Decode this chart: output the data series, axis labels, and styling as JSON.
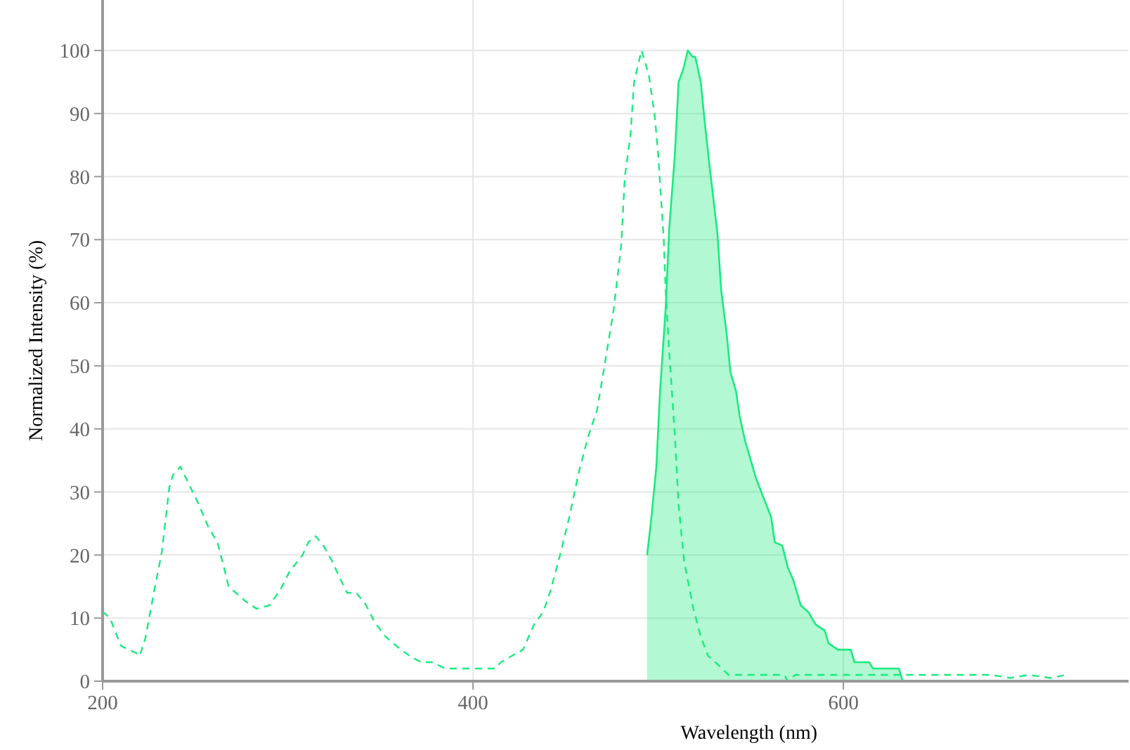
{
  "chart_data": {
    "type": "line",
    "xlabel": "Wavelength (nm)",
    "ylabel": "Normalized Intensity (%)",
    "xlim": [
      200,
      754
    ],
    "ylim": [
      0,
      108
    ],
    "xticks": [
      200,
      400,
      600
    ],
    "yticks": [
      0,
      10,
      20,
      30,
      40,
      50,
      60,
      70,
      80,
      90,
      100
    ],
    "grid": true,
    "series": [
      {
        "line_style": "dashed",
        "color": "#1aeb7d",
        "x": [
          200,
          204,
          208,
          210,
          214,
          218,
          220,
          223,
          228,
          232,
          236,
          238,
          242,
          247,
          252,
          257,
          262,
          266,
          268,
          272,
          277,
          283,
          290,
          296,
          301,
          308,
          311,
          315,
          319,
          324,
          328,
          332,
          337,
          342,
          347,
          353,
          361,
          367,
          372,
          378,
          385,
          412,
          415,
          421,
          427,
          433,
          438,
          442,
          447,
          452,
          457,
          462,
          467,
          471,
          476,
          480,
          482,
          485,
          487,
          491,
          495,
          498,
          500,
          503,
          504,
          506,
          509,
          511,
          514,
          519,
          523,
          527,
          532,
          538,
          568,
          570,
          574,
          680,
          690,
          700,
          712,
          720
        ],
        "values": [
          11,
          10,
          7,
          5.6,
          5,
          4.5,
          4,
          6.7,
          14.5,
          20.5,
          30.7,
          32.7,
          34,
          31,
          28,
          24.5,
          22,
          17.5,
          15,
          14,
          12.7,
          11.5,
          12,
          14.5,
          17.4,
          20,
          22,
          23,
          21.6,
          19,
          16.4,
          14,
          14,
          12.2,
          9.3,
          7,
          5,
          3.8,
          3,
          3,
          2,
          2,
          3,
          4,
          5,
          9,
          11,
          14.5,
          20,
          26,
          33,
          38.6,
          43,
          50,
          59,
          69,
          80,
          86.5,
          95,
          100,
          96,
          90,
          83.5,
          70,
          62,
          52,
          39,
          28,
          19,
          11.5,
          7,
          4,
          2.7,
          1,
          1,
          0,
          1,
          1,
          0.5,
          1,
          0.5,
          1
        ]
      },
      {
        "type": "area",
        "line_style": "solid",
        "color": "#1aeb7d",
        "x": [
          494,
          496,
          499,
          501,
          504,
          506,
          509,
          511,
          513.5,
          516,
          518.5,
          520,
          523,
          525,
          528,
          532,
          534,
          537,
          539,
          542,
          544,
          547,
          549,
          553,
          557,
          561,
          563,
          567,
          570,
          573,
          577,
          581,
          585,
          590,
          592,
          597,
          604,
          606,
          614,
          616,
          630,
          632,
          650
        ],
        "values": [
          20,
          25,
          34,
          46,
          59,
          72,
          83.5,
          95,
          97,
          100,
          99,
          99,
          95,
          89,
          81,
          71,
          62,
          55,
          49,
          46,
          42,
          38,
          36,
          32,
          29,
          26,
          22,
          21.5,
          18,
          16,
          12,
          11,
          9,
          8,
          6,
          5,
          5,
          3,
          3,
          2,
          2,
          0,
          0
        ]
      }
    ]
  }
}
